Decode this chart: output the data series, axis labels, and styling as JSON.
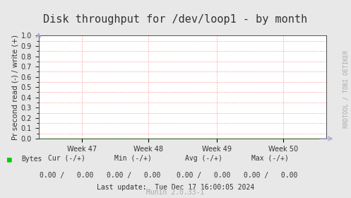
{
  "title": "Disk throughput for /dev/loop1 - by month",
  "ylabel": "Pr second read (-) / write (+)",
  "ylim": [
    0.0,
    1.0
  ],
  "yticks": [
    0.0,
    0.1,
    0.2,
    0.3,
    0.4,
    0.5,
    0.6,
    0.7,
    0.8,
    0.9,
    1.0
  ],
  "xtick_labels": [
    "Week 47",
    "Week 48",
    "Week 49",
    "Week 50"
  ],
  "xtick_positions": [
    0.15,
    0.38,
    0.62,
    0.85
  ],
  "bg_color": "#e8e8e8",
  "plot_bg_color": "#ffffff",
  "grid_color_major": "#ffffff",
  "grid_color_minor": "#ffaaaa",
  "title_color": "#333333",
  "axis_color": "#333333",
  "line_color": "#00e000",
  "watermark_text": "RRDTOOL / TOBI OETIKER",
  "legend_label": "Bytes",
  "legend_color": "#00cc00",
  "cur_label": "Cur (-/+)",
  "min_label": "Min (-/+)",
  "avg_label": "Avg (-/+)",
  "max_label": "Max (-/+)",
  "cur_val": "0.00 /   0.00",
  "min_val": "0.00 /   0.00",
  "avg_val": "0.00 /   0.00",
  "max_val": "0.00 /   0.00",
  "footer_text": "Last update:  Tue Dec 17 16:00:05 2024",
  "munin_text": "Munin 2.0.33-1",
  "title_fontsize": 11,
  "axis_fontsize": 7.5,
  "tick_fontsize": 7,
  "footer_fontsize": 7,
  "watermark_fontsize": 6
}
